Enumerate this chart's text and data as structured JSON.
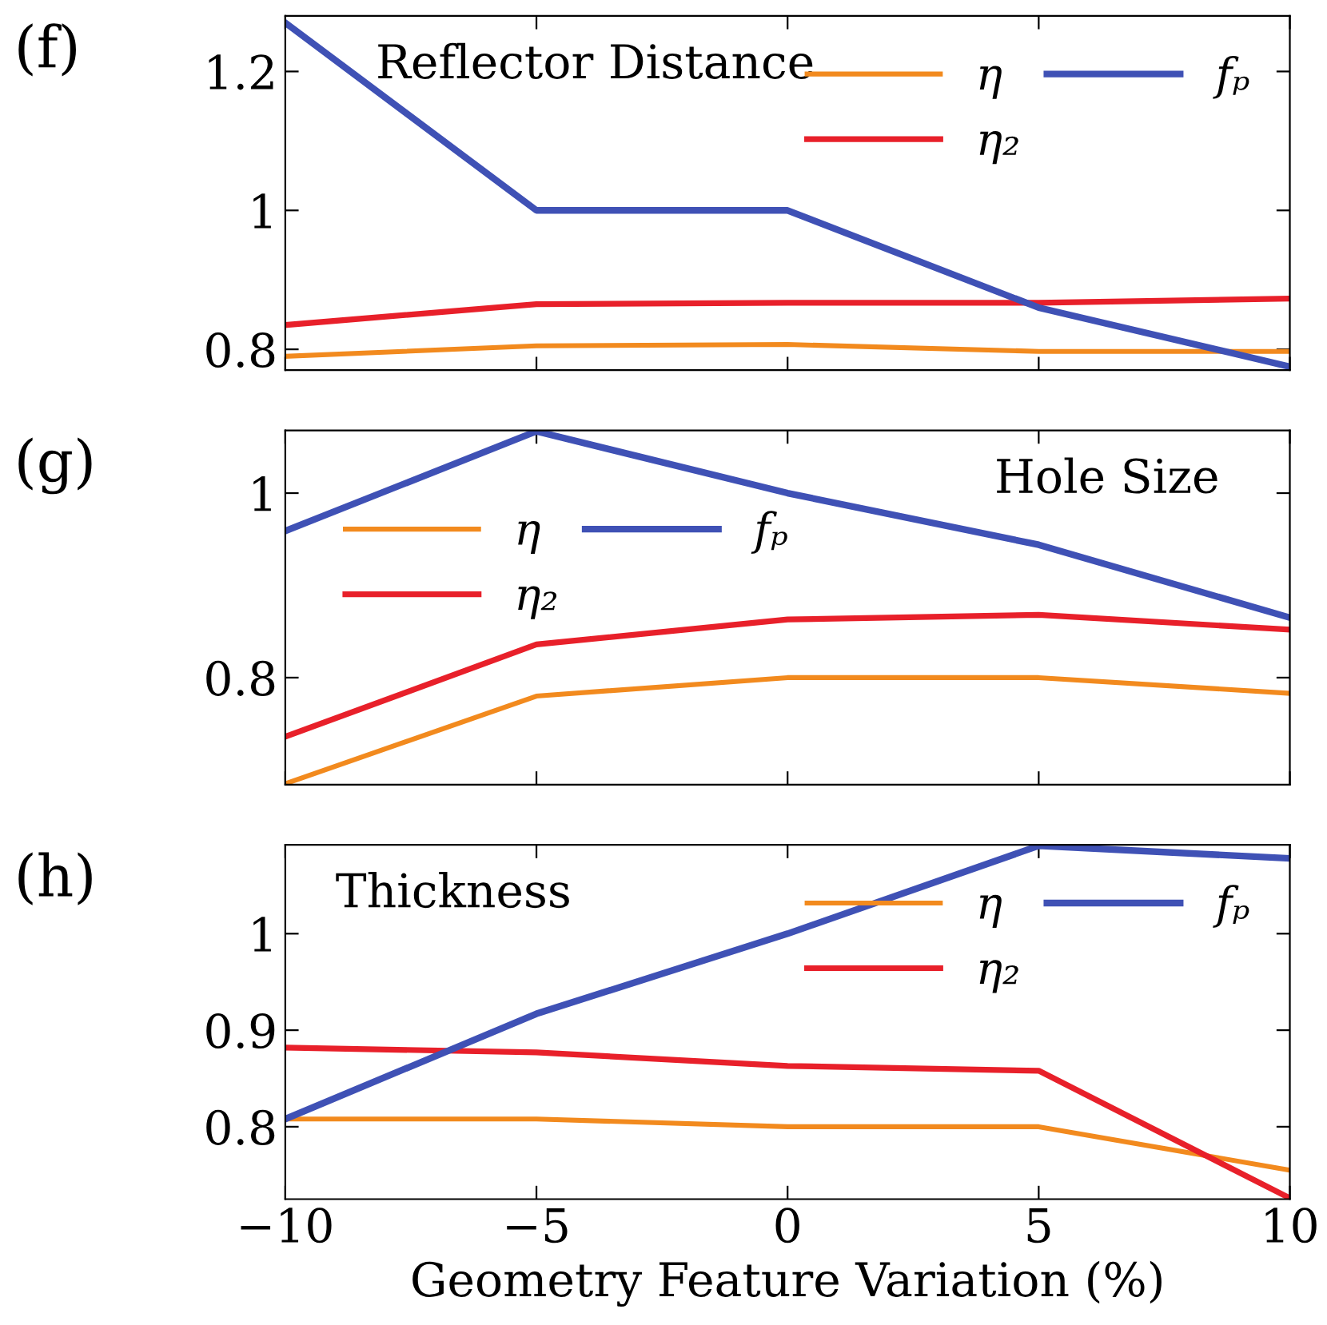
{
  "chart_data": [
    {
      "type": "line",
      "title": "Reflector Distance",
      "annotations": [
        "(f)"
      ],
      "x": [
        -10,
        -5,
        0,
        5,
        10
      ],
      "xlim": [
        -10,
        10
      ],
      "xticks": [
        -10,
        -5,
        0,
        5,
        10
      ],
      "ylim": [
        0.77,
        1.28
      ],
      "yticks": [
        0.8,
        1,
        1.2
      ],
      "tick_labels": "y",
      "legend": "top right",
      "grid": false,
      "series": [
        {
          "name": "η",
          "color": "#f28a1e",
          "values": [
            0.79,
            0.805,
            0.807,
            0.797,
            0.797
          ]
        },
        {
          "name": "η₂",
          "color": "#e8202a",
          "values": [
            0.835,
            0.865,
            0.867,
            0.867,
            0.873
          ]
        },
        {
          "name": "fₚ",
          "color": "#3f51b5",
          "values": [
            1.27,
            1.0,
            1.0,
            0.86,
            0.775
          ]
        }
      ]
    },
    {
      "type": "line",
      "title": "Hole Size",
      "annotations": [
        "(g)"
      ],
      "x": [
        -10,
        -5,
        0,
        5,
        10
      ],
      "xlim": [
        -10,
        10
      ],
      "xticks": [
        -10,
        -5,
        0,
        5,
        10
      ],
      "ylim": [
        0.684,
        1.068
      ],
      "yticks": [
        0.8,
        1
      ],
      "tick_labels": "y",
      "legend": "center left",
      "grid": false,
      "series": [
        {
          "name": "η",
          "color": "#f28a1e",
          "values": [
            0.685,
            0.78,
            0.8,
            0.8,
            0.783
          ]
        },
        {
          "name": "η₂",
          "color": "#e8202a",
          "values": [
            0.736,
            0.836,
            0.863,
            0.868,
            0.852
          ]
        },
        {
          "name": "fₚ",
          "color": "#3f51b5",
          "values": [
            0.959,
            1.067,
            1.0,
            0.944,
            0.865
          ]
        }
      ]
    },
    {
      "type": "line",
      "title": "Thickness",
      "annotations": [
        "(h)"
      ],
      "x": [
        -10,
        -5,
        0,
        5,
        10
      ],
      "xlim": [
        -10,
        10
      ],
      "xticks": [
        -10,
        -5,
        0,
        5,
        10
      ],
      "ylim": [
        0.725,
        1.092
      ],
      "yticks": [
        0.8,
        0.9,
        1
      ],
      "xlabel": "Geometry Feature Variation (%)",
      "legend": "top right",
      "grid": false,
      "series": [
        {
          "name": "η",
          "color": "#f28a1e",
          "values": [
            0.808,
            0.808,
            0.8,
            0.8,
            0.755
          ]
        },
        {
          "name": "η₂",
          "color": "#e8202a",
          "values": [
            0.882,
            0.877,
            0.863,
            0.858,
            0.726
          ]
        },
        {
          "name": "fₚ",
          "color": "#3f51b5",
          "values": [
            0.808,
            0.917,
            1.0,
            1.091,
            1.078
          ]
        }
      ]
    }
  ]
}
